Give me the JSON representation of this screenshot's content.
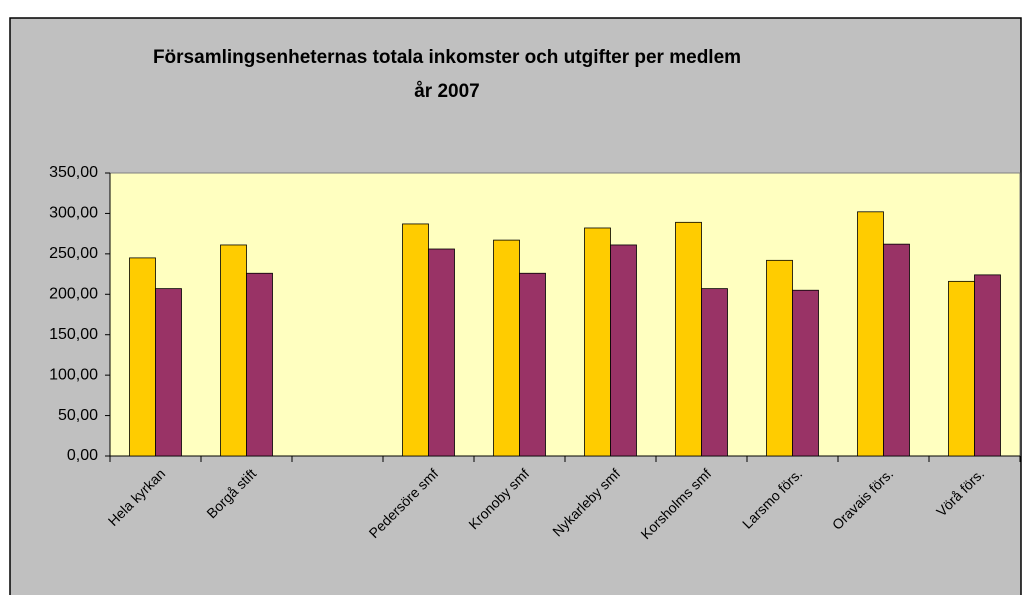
{
  "chart_data": {
    "type": "bar",
    "title": [
      "Församlingsenheternas totala inkomster och utgifter per medlem",
      "år 2007"
    ],
    "categories": [
      "Hela kyrkan",
      "Borgå stift",
      null,
      "Pedersöre smf",
      "Kronoby smf",
      "Nykarleby smf",
      "Korsholms smf",
      "Larsmo förs.",
      "Oravais förs.",
      "Vörå förs."
    ],
    "series": [
      {
        "color": "#ffcc00",
        "values": [
          245,
          261,
          null,
          287,
          267,
          282,
          289,
          242,
          302,
          216
        ]
      },
      {
        "color": "#993366",
        "values": [
          207,
          226,
          null,
          256,
          226,
          261,
          207,
          205,
          262,
          224
        ]
      }
    ],
    "ylim": [
      0,
      350
    ],
    "yticks": [
      {
        "value": 0,
        "label": "0,00"
      },
      {
        "value": 50,
        "label": "50,00"
      },
      {
        "value": 100,
        "label": "100,00"
      },
      {
        "value": 150,
        "label": "150,00"
      },
      {
        "value": 200,
        "label": "200,00"
      },
      {
        "value": 250,
        "label": "250,00"
      },
      {
        "value": 300,
        "label": "300,00"
      },
      {
        "value": 350,
        "label": "350,00"
      }
    ],
    "grid": false
  }
}
